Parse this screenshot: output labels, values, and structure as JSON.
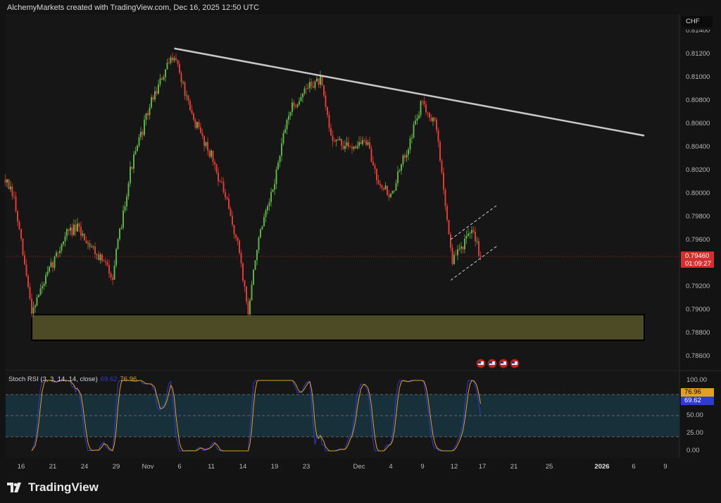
{
  "header": {
    "title": "AlchemyMarkets created with TradingView.com, Dec 16, 2025 12:50 UTC"
  },
  "price_axis": {
    "currency": "CHF",
    "labels": [
      "0.81400",
      "0.81200",
      "0.81000",
      "0.80800",
      "0.80600",
      "0.80400",
      "0.80200",
      "0.80000",
      "0.79800",
      "0.79600",
      "0.79200",
      "0.79000",
      "0.78800",
      "0.78600"
    ],
    "last_price": "0.79460",
    "countdown": "01:09:27"
  },
  "time_axis": [
    {
      "label": "16",
      "date": "2025-10-16"
    },
    {
      "label": "21",
      "date": "2025-10-21"
    },
    {
      "label": "24",
      "date": "2025-10-24"
    },
    {
      "label": "29",
      "date": "2025-10-29"
    },
    {
      "label": "Nov",
      "date": "2025-11-03",
      "bold": false
    },
    {
      "label": "6",
      "date": "2025-11-06"
    },
    {
      "label": "11",
      "date": "2025-11-11"
    },
    {
      "label": "14",
      "date": "2025-11-14"
    },
    {
      "label": "19",
      "date": "2025-11-19"
    },
    {
      "label": "23",
      "date": "2025-11-24"
    },
    {
      "label": "Dec",
      "date": "2025-12-01"
    },
    {
      "label": "4",
      "date": "2025-12-04"
    },
    {
      "label": "9",
      "date": "2025-12-09"
    },
    {
      "label": "12",
      "date": "2025-12-12"
    },
    {
      "label": "17",
      "date": "2025-12-16 16:00"
    },
    {
      "label": "21",
      "date": "2025-12-19 16:00"
    },
    {
      "label": "25",
      "date": "2025-12-25"
    },
    {
      "label": "2026",
      "date": "2026-01-01",
      "bold": true
    },
    {
      "label": "6",
      "date": "2026-01-06"
    },
    {
      "label": "9",
      "date": "2026-01-09"
    }
  ],
  "indicator": {
    "label": "Stoch RSI (3, 3, 14, 14, close)",
    "k_value": "69.62",
    "d_value": "76.96",
    "axis_labels": [
      "100.00",
      "50.00",
      "25.00",
      "0.00"
    ],
    "levels": [
      80,
      50,
      20
    ],
    "k_color": "#2f3ad0",
    "d_color": "#e0a020"
  },
  "event_icons": [
    "us-flag-icon",
    "us-flag-icon",
    "us-flag-icon",
    "us-flag-icon"
  ],
  "branding": {
    "logo": "TradingView"
  },
  "colors": {
    "up": "#5cb343",
    "down": "#e53935",
    "zone": "#4d4a26",
    "trendline": "#c8c8c8",
    "band": "#17303a"
  },
  "chart_data": {
    "type": "candlestick",
    "symbol_currency": "CHF",
    "ylim": [
      0.7855,
      0.8145
    ],
    "path_waypoints": [
      [
        "2025-10-14 12:00",
        0.8012
      ],
      [
        "2025-10-15 08:00",
        0.7995
      ],
      [
        "2025-10-17 00:00",
        0.79
      ],
      [
        "2025-10-20 08:00",
        0.7927
      ],
      [
        "2025-10-22 08:00",
        0.7967
      ],
      [
        "2025-10-23 08:00",
        0.797
      ],
      [
        "2025-10-24 16:00",
        0.7955
      ],
      [
        "2025-10-28 16:00",
        0.793
      ],
      [
        "2025-10-30 08:00",
        0.802
      ],
      [
        "2025-11-03 08:00",
        0.808
      ],
      [
        "2025-11-05 12:00",
        0.8121
      ],
      [
        "2025-11-07 00:00",
        0.807
      ],
      [
        "2025-11-11 00:00",
        0.8033
      ],
      [
        "2025-11-12 08:00",
        0.7997
      ],
      [
        "2025-11-13 16:00",
        0.795
      ],
      [
        "2025-11-14 12:00",
        0.7897
      ],
      [
        "2025-11-17 08:00",
        0.7955
      ],
      [
        "2025-11-18 16:00",
        0.7997
      ],
      [
        "2025-11-20 08:00",
        0.807
      ],
      [
        "2025-11-24 08:00",
        0.8094
      ],
      [
        "2025-11-25 08:00",
        0.8097
      ],
      [
        "2025-11-26 08:00",
        0.805
      ],
      [
        "2025-11-27 16:00",
        0.804
      ],
      [
        "2025-12-01 16:00",
        0.8045
      ],
      [
        "2025-12-02 16:00",
        0.8015
      ],
      [
        "2025-12-04 00:00",
        0.7997
      ],
      [
        "2025-12-05 08:00",
        0.8033
      ],
      [
        "2025-12-09 00:00",
        0.808
      ],
      [
        "2025-12-10 08:00",
        0.8057
      ],
      [
        "2025-12-11 00:00",
        0.8003
      ],
      [
        "2025-12-11 20:00",
        0.7942
      ],
      [
        "2025-12-12 16:00",
        0.7955
      ],
      [
        "2025-12-15 20:00",
        0.7967
      ],
      [
        "2025-12-16 12:00",
        0.7946
      ]
    ],
    "trendline": [
      [
        "2025-11-05 12:00",
        0.8125
      ],
      [
        "2026-01-07 00:00",
        0.805
      ]
    ],
    "support_zone": {
      "from": "2025-10-17 00:00",
      "to": "2026-01-07 00:00",
      "top": 0.7896,
      "bottom": 0.7874
    },
    "channel": {
      "upper": [
        [
          "2025-12-11 16:00",
          0.79606
        ],
        [
          "2025-12-18 04:00",
          0.79909
        ]
      ],
      "lower": [
        [
          "2025-12-11 16:00",
          0.79255
        ],
        [
          "2025-12-18 04:00",
          0.79558
        ]
      ]
    },
    "last": 0.7946
  }
}
